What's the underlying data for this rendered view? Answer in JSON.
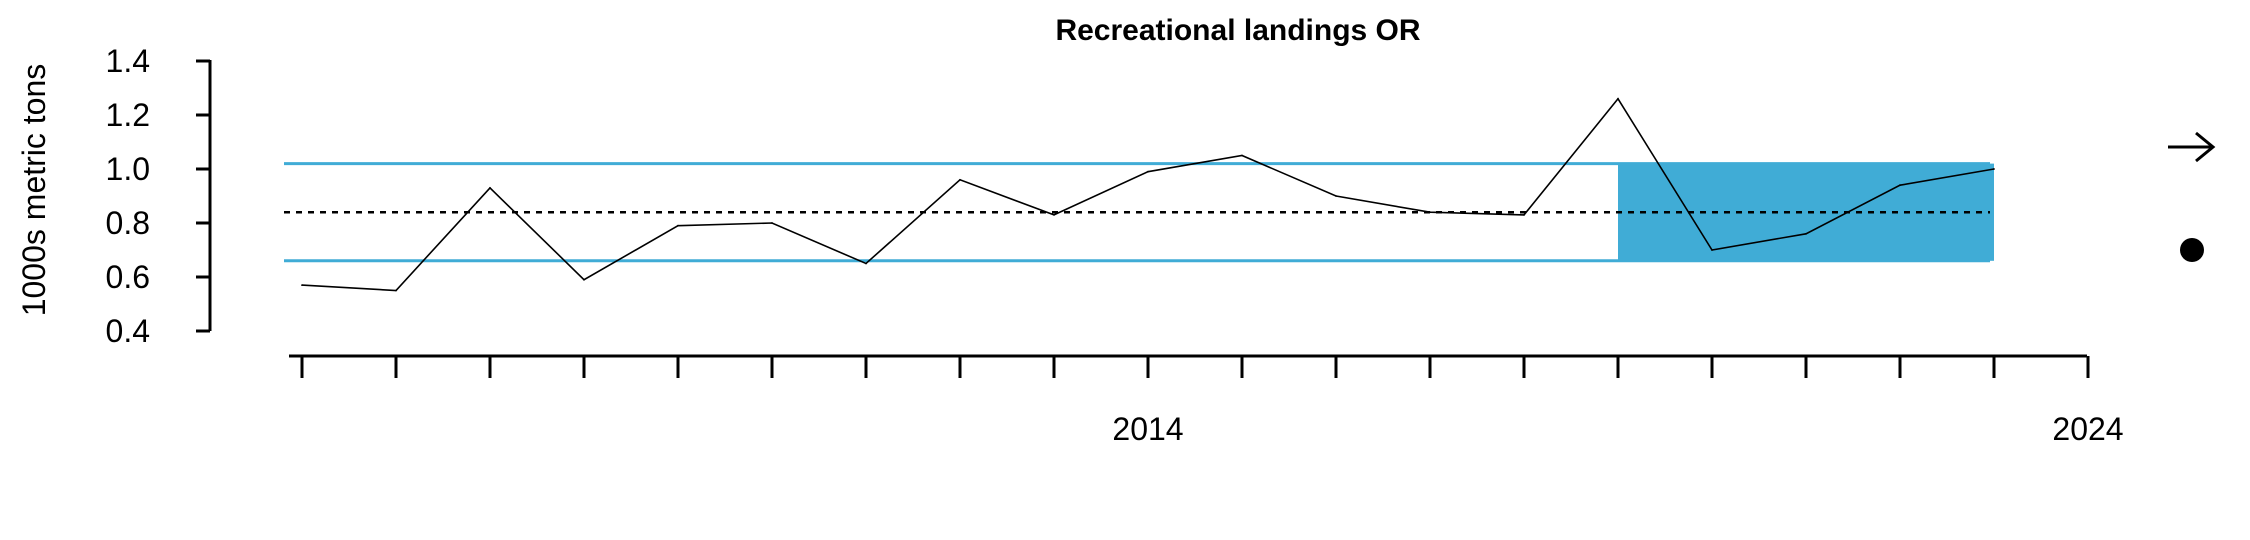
{
  "colors": {
    "accent": "#40acd6",
    "line": "#000000"
  },
  "icons": {
    "trend": "right-arrow-icon",
    "status": "filled-circle-icon"
  },
  "chart_data": {
    "type": "line",
    "title": "Recreational landings OR",
    "ylabel": "1000s metric tons",
    "xlabel": "",
    "ylim": [
      0.4,
      1.4
    ],
    "yticks": [
      0.4,
      0.6,
      0.8,
      1.0,
      1.2,
      1.4
    ],
    "ytick_labels": [
      "0.4",
      "0.6",
      "0.8",
      "1.0",
      "1.2",
      "1.4"
    ],
    "xlim": [
      2005,
      2024
    ],
    "xticks_minor": [
      2005,
      2006,
      2007,
      2008,
      2009,
      2010,
      2011,
      2012,
      2013,
      2014,
      2015,
      2016,
      2017,
      2018,
      2019,
      2020,
      2021,
      2022,
      2023,
      2024
    ],
    "xtick_labels": [
      {
        "x": 2014,
        "label": "2014"
      },
      {
        "x": 2024,
        "label": "2024"
      }
    ],
    "x": [
      2005,
      2006,
      2007,
      2008,
      2009,
      2010,
      2011,
      2012,
      2013,
      2014,
      2015,
      2016,
      2017,
      2018,
      2019,
      2020,
      2021,
      2022,
      2023
    ],
    "values": [
      0.57,
      0.55,
      0.93,
      0.59,
      0.79,
      0.8,
      0.65,
      0.96,
      0.83,
      0.99,
      1.05,
      0.9,
      0.84,
      0.83,
      1.26,
      0.7,
      0.76,
      0.94,
      1.0
    ],
    "mean": 0.84,
    "upper_band": 1.02,
    "lower_band": 0.66,
    "highlight_range": [
      2019,
      2023
    ],
    "grid": false,
    "trend_symbol": "→",
    "status_symbol": "●"
  }
}
